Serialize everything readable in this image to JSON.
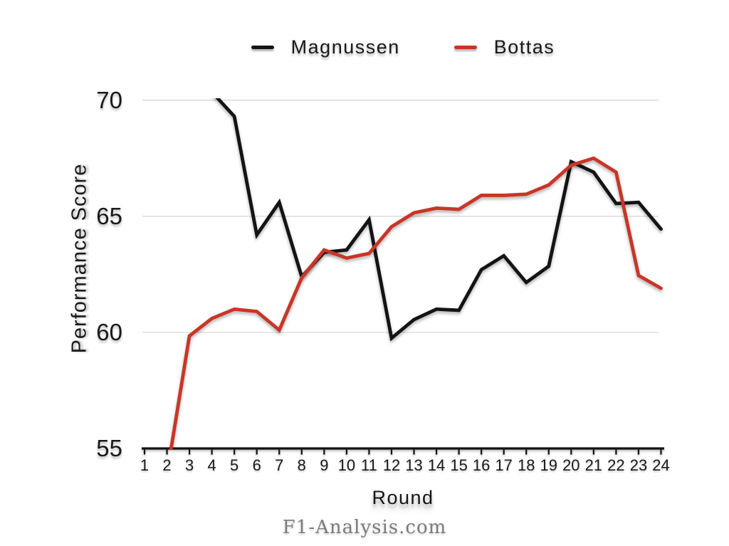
{
  "watermark": "F1-Analysis.com",
  "chart_data": {
    "type": "line",
    "title": "",
    "xlabel": "Round",
    "ylabel": "Performance Score",
    "x": [
      1,
      2,
      3,
      4,
      5,
      6,
      7,
      8,
      9,
      10,
      11,
      12,
      13,
      14,
      15,
      16,
      17,
      18,
      19,
      20,
      21,
      22,
      23,
      24
    ],
    "xticks": [
      1,
      2,
      3,
      4,
      5,
      6,
      7,
      8,
      9,
      10,
      11,
      12,
      13,
      14,
      15,
      16,
      17,
      18,
      19,
      20,
      21,
      22,
      23,
      24
    ],
    "yticks": [
      55,
      60,
      65,
      70
    ],
    "xlim": [
      1,
      24
    ],
    "ylim": [
      55,
      70
    ],
    "grid": "horizontal-only",
    "legend_position": "top-center",
    "axis_color": "#111111",
    "gridline_color": "#d8d8d8",
    "series": [
      {
        "name": "Magnussen",
        "color": "#141414",
        "values": [
          null,
          null,
          null,
          70.35,
          69.3,
          64.2,
          65.6,
          62.4,
          63.45,
          63.55,
          64.85,
          59.75,
          60.55,
          61.0,
          60.95,
          62.7,
          63.3,
          62.15,
          62.85,
          67.35,
          66.9,
          65.55,
          65.6,
          64.45
        ]
      },
      {
        "name": "Bottas",
        "color": "#c93526",
        "values": [
          null,
          53.9,
          59.85,
          60.6,
          61.0,
          60.9,
          60.1,
          62.35,
          63.55,
          63.2,
          63.4,
          64.55,
          65.15,
          65.35,
          65.3,
          65.9,
          65.9,
          65.95,
          66.35,
          67.2,
          67.5,
          66.9,
          62.45,
          61.9
        ]
      }
    ]
  }
}
